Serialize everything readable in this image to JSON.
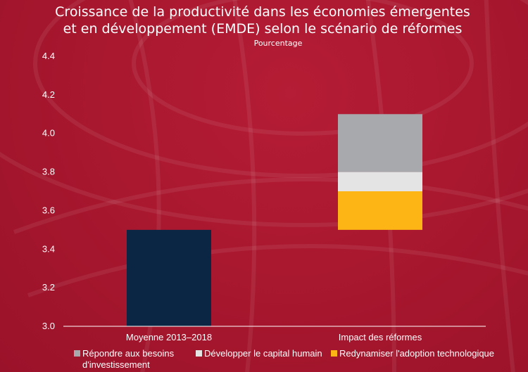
{
  "chart_data": {
    "type": "bar",
    "title_lines": [
      "Croissance de la productivité dans les économies émergentes",
      "et en développement (EMDE) selon le scénario de réformes"
    ],
    "subtitle": "Pourcentage",
    "ylim": [
      3.0,
      4.4
    ],
    "yticks": [
      "3.0",
      "3.2",
      "3.4",
      "3.6",
      "3.8",
      "4.0",
      "4.2",
      "4.4"
    ],
    "categories": [
      "Moyenne 2013–2018",
      "Impact des réformes"
    ],
    "baseline": {
      "category": "Moyenne 2013–2018",
      "value": 3.5,
      "color": "#0b2545"
    },
    "stack": {
      "category": "Impact des réformes",
      "base": 3.5,
      "series": [
        {
          "name": "Redynamiser l'adoption technologique",
          "value": 0.2,
          "color": "#fdb515"
        },
        {
          "name": "Développer le capital humain",
          "value": 0.1,
          "color": "#e4e4e4"
        },
        {
          "name": "Répondre aux besoins d'investissement",
          "value": 0.3,
          "color": "#a7a9ac"
        }
      ]
    },
    "legend": [
      {
        "lines": [
          "Répondre aux besoins",
          "d'investissement"
        ],
        "color": "#a7a9ac"
      },
      {
        "lines": [
          "Développer le capital humain"
        ],
        "color": "#e4e4e4"
      },
      {
        "lines": [
          "Redynamiser l'adoption technologique"
        ],
        "color": "#fdb515"
      }
    ],
    "legend_placement": "bottom",
    "grid": false,
    "axis_color": "#ffffff"
  }
}
